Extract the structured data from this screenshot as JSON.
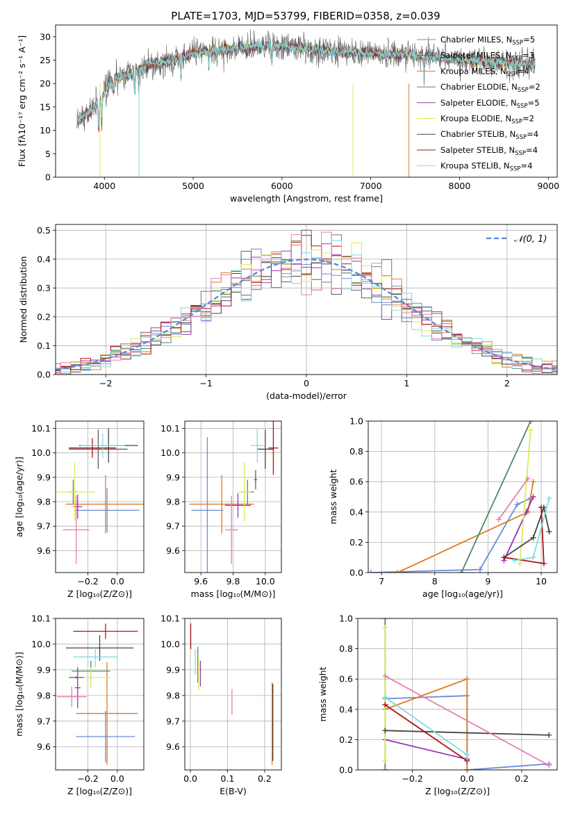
{
  "title": "PLATE=1703, MJD=53799, FIBERID=0358, z=0.039",
  "colors": [
    "#6a8ad6",
    "#5e5e5e",
    "#e07a1f",
    "#4f8a5e",
    "#9a32b4",
    "#d9ec4f",
    "#444444",
    "#b01212",
    "#7fdce0",
    "#e87db0"
  ],
  "chart_data": [
    {
      "id": "spectrum",
      "type": "line",
      "title": "PLATE=1703, MJD=53799, FIBERID=0358, z=0.039",
      "xlabel": "wavelength [Angstrom, rest frame]",
      "ylabel": "Flux [fλ10⁻¹⁷ erg cm⁻² s⁻¹ A⁻¹]",
      "xlim": [
        3450,
        9100
      ],
      "ylim": [
        0,
        32.5
      ],
      "xticks": [
        4000,
        5000,
        6000,
        7000,
        8000,
        9000
      ],
      "yticks": [
        0,
        5,
        10,
        15,
        20,
        25,
        30
      ],
      "x_range": [
        3690,
        8850
      ],
      "continuum": [
        [
          3690,
          12
        ],
        [
          3850,
          14
        ],
        [
          3960,
          17
        ],
        [
          4100,
          21
        ],
        [
          4300,
          22
        ],
        [
          4500,
          24
        ],
        [
          4800,
          25
        ],
        [
          5000,
          26.5
        ],
        [
          5200,
          27
        ],
        [
          5500,
          27.5
        ],
        [
          5800,
          28
        ],
        [
          6000,
          28
        ],
        [
          6200,
          27.5
        ],
        [
          6500,
          27
        ],
        [
          7000,
          26.5
        ],
        [
          7500,
          26
        ],
        [
          8000,
          25
        ],
        [
          8500,
          24.5
        ],
        [
          8850,
          24
        ]
      ],
      "grid": false,
      "legend_position": "upper right",
      "legend": [
        "Chabrier MILES, N_SSP=5",
        "Salpeter MILES, N_SSP=3",
        "Kroupa MILES, N_SSP=4",
        "Chabrier ELODIE, N_SSP=2",
        "Salpeter ELODIE, N_SSP=5",
        "Kroupa ELODIE, N_SSP=2",
        "Chabrier STELIB, N_SSP=4",
        "Salpeter STELIB, N_SSP=4",
        "Kroupa STELIB, N_SSP=4"
      ],
      "legend_text": [
        {
          "main": "Chabrier MILES, N",
          "sub": "SSP",
          "tail": "=5"
        },
        {
          "main": "Salpeter MILES, N",
          "sub": "SSP",
          "tail": "=3"
        },
        {
          "main": "Kroupa MILES, N",
          "sub": "SSP",
          "tail": "=4"
        },
        {
          "main": "Chabrier ELODIE, N",
          "sub": "SSP",
          "tail": "=2"
        },
        {
          "main": "Salpeter ELODIE, N",
          "sub": "SSP",
          "tail": "=5"
        },
        {
          "main": "Kroupa ELODIE, N",
          "sub": "SSP",
          "tail": "=2"
        },
        {
          "main": "Chabrier STELIB, N",
          "sub": "SSP",
          "tail": "=4"
        },
        {
          "main": "Salpeter STELIB, N",
          "sub": "SSP",
          "tail": "=4"
        },
        {
          "main": "Kroupa STELIB, N",
          "sub": "SSP",
          "tail": "=4"
        }
      ],
      "legend_colors": [
        "#6a8ad6",
        "#5e5e5e",
        "#e07a1f",
        "#4f8a5e",
        "#9a32b4",
        "#d9ec4f",
        "#444444",
        "#b01212",
        "#7fdce0"
      ]
    },
    {
      "id": "residuals",
      "type": "step",
      "xlabel": "(data-model)/error",
      "ylabel": "Normed distribution",
      "xlim": [
        -2.5,
        2.5
      ],
      "ylim": [
        0,
        0.52
      ],
      "xticks": [
        -2,
        -1,
        0,
        1,
        2
      ],
      "yticks": [
        0.0,
        0.1,
        0.2,
        0.3,
        0.4,
        0.5
      ],
      "grid": true,
      "bin_width": 0.1,
      "reference_curve": {
        "name": "𝒩(0, 1)",
        "mean": 0,
        "sigma": 1,
        "color": "#5588dd"
      },
      "legend_position": "upper right"
    },
    {
      "id": "age-vs-Z",
      "type": "errorbar",
      "xlabel": "Z [log₁₀(Z/Z⊙)]",
      "ylabel": "age  [log₁₀(age/yr)]",
      "xlim": [
        -0.42,
        0.18
      ],
      "ylim": [
        9.51,
        10.13
      ],
      "xticks": [
        -0.2,
        0.0
      ],
      "yticks": [
        9.6,
        9.7,
        9.8,
        9.9,
        10.0,
        10.1
      ],
      "grid": true,
      "points": [
        {
          "x": -0.07,
          "y": 9.765,
          "xerr": 0.22,
          "yerr": 0.09,
          "color": "#6a8ad6"
        },
        {
          "x": -0.06,
          "y": 10.03,
          "xerr": 0.2,
          "yerr": 0.07,
          "color": "#444444"
        },
        {
          "x": -0.08,
          "y": 9.79,
          "xerr": 0.27,
          "yerr": 0.12,
          "color": "#e07a1f"
        },
        {
          "x": -0.3,
          "y": 9.84,
          "xerr": 0.03,
          "yerr": 0.05,
          "color": "#4f8a5e"
        },
        {
          "x": -0.27,
          "y": 9.78,
          "xerr": 0.03,
          "yerr": 0.05,
          "color": "#9a32b4"
        },
        {
          "x": -0.29,
          "y": 9.84,
          "xerr": 0.14,
          "yerr": 0.12,
          "color": "#d9ec4f"
        },
        {
          "x": -0.13,
          "y": 10.015,
          "xerr": 0.2,
          "yerr": 0.08,
          "color": "#5e5e5e"
        },
        {
          "x": -0.17,
          "y": 10.02,
          "xerr": 0.16,
          "yerr": 0.04,
          "color": "#b01212"
        },
        {
          "x": -0.1,
          "y": 10.03,
          "xerr": 0.15,
          "yerr": 0.05,
          "color": "#7fdce0"
        },
        {
          "x": -0.28,
          "y": 9.685,
          "xerr": 0.09,
          "yerr": 0.14,
          "color": "#e87db0"
        }
      ]
    },
    {
      "id": "age-vs-mass",
      "type": "errorbar",
      "xlabel": "mass [log₁₀(M/M⊙)]",
      "ylabel": "",
      "xlim": [
        9.5,
        10.1
      ],
      "ylim": [
        9.51,
        10.13
      ],
      "xticks": [
        9.6,
        9.8,
        10.0
      ],
      "yticks": [
        9.6,
        9.7,
        9.8,
        9.9,
        10.0,
        10.1
      ],
      "grid": true,
      "points": [
        {
          "x": 9.64,
          "y": 9.765,
          "xerr": 0.1,
          "yerr": 0.3,
          "color": "#6a8ad6"
        },
        {
          "x": 10.0,
          "y": 10.015,
          "xerr": 0.05,
          "yerr": 0.08,
          "color": "#444444"
        },
        {
          "x": 9.73,
          "y": 9.79,
          "xerr": 0.2,
          "yerr": 0.12,
          "color": "#e07a1f"
        },
        {
          "x": 9.89,
          "y": 9.84,
          "xerr": 0.04,
          "yerr": 0.05,
          "color": "#4f8a5e"
        },
        {
          "x": 9.83,
          "y": 9.785,
          "xerr": 0.08,
          "yerr": 0.05,
          "color": "#9a32b4"
        },
        {
          "x": 9.87,
          "y": 9.84,
          "xerr": 0.04,
          "yerr": 0.12,
          "color": "#d9ec4f"
        },
        {
          "x": 9.94,
          "y": 9.89,
          "xerr": 0.01,
          "yerr": 0.04,
          "color": "#5e5e5e"
        },
        {
          "x": 10.05,
          "y": 10.02,
          "xerr": 0.03,
          "yerr": 0.11,
          "color": "#b01212"
        },
        {
          "x": 9.95,
          "y": 10.03,
          "xerr": 0.04,
          "yerr": 0.07,
          "color": "#7fdce0"
        },
        {
          "x": 9.79,
          "y": 9.685,
          "xerr": 0.04,
          "yerr": 0.14,
          "color": "#e87db0"
        }
      ]
    },
    {
      "id": "mass-weight-vs-age",
      "type": "line",
      "xlabel": "age  [log₁₀(age/yr)]",
      "ylabel": "mass weight",
      "xlim": [
        6.75,
        10.3
      ],
      "ylim": [
        0,
        1.0
      ],
      "xticks": [
        7,
        8,
        9,
        10
      ],
      "yticks": [
        0.0,
        0.2,
        0.4,
        0.6,
        0.8,
        1.0
      ],
      "grid": true,
      "series": [
        {
          "color": "#6a8ad6",
          "x": [
            6.8,
            8.85,
            9.55,
            9.8
          ],
          "y": [
            0.0,
            0.02,
            0.45,
            0.49
          ]
        },
        {
          "color": "#e07a1f",
          "x": [
            7.3,
            9.75,
            9.85
          ],
          "y": [
            0.0,
            0.4,
            0.6
          ]
        },
        {
          "color": "#4f8a5e",
          "x": [
            8.5,
            9.8
          ],
          "y": [
            0.0,
            1.0
          ]
        },
        {
          "color": "#9a32b4",
          "x": [
            9.3,
            9.72,
            9.85
          ],
          "y": [
            0.08,
            0.4,
            0.5
          ]
        },
        {
          "color": "#d9ec4f",
          "x": [
            9.6,
            9.8
          ],
          "y": [
            0.06,
            0.94
          ]
        },
        {
          "color": "#444444",
          "x": [
            9.3,
            9.85,
            10.05,
            10.15
          ],
          "y": [
            0.1,
            0.23,
            0.43,
            0.27
          ]
        },
        {
          "color": "#b01212",
          "x": [
            9.3,
            10.05,
            10.0
          ],
          "y": [
            0.1,
            0.06,
            0.43
          ]
        },
        {
          "color": "#7fdce0",
          "x": [
            9.5,
            9.85,
            10.15
          ],
          "y": [
            0.08,
            0.1,
            0.49
          ]
        },
        {
          "color": "#e87db0",
          "x": [
            9.2,
            9.75
          ],
          "y": [
            0.35,
            0.62
          ]
        }
      ]
    },
    {
      "id": "mass-vs-Z",
      "type": "errorbar",
      "xlabel": "Z [log₁₀(Z/Z⊙)]",
      "ylabel": "mass [log₁₀(M/M⊙)]",
      "xlim": [
        -0.42,
        0.18
      ],
      "ylim": [
        9.51,
        10.1
      ],
      "xticks": [
        -0.2,
        0.0
      ],
      "yticks": [
        9.6,
        9.7,
        9.8,
        9.9,
        10.0,
        10.1
      ],
      "grid": true,
      "points": [
        {
          "x": -0.08,
          "y": 9.64,
          "xerr": 0.2,
          "yerr": 0.1,
          "color": "#6a8ad6"
        },
        {
          "x": -0.07,
          "y": 9.73,
          "xerr": 0.21,
          "yerr": 0.2,
          "color": "#e07a1f"
        },
        {
          "x": -0.18,
          "y": 9.895,
          "xerr": 0.13,
          "yerr": 0.04,
          "color": "#4f8a5e"
        },
        {
          "x": -0.27,
          "y": 9.83,
          "xerr": 0.02,
          "yerr": 0.08,
          "color": "#9a32b4"
        },
        {
          "x": -0.18,
          "y": 9.87,
          "xerr": 0.13,
          "yerr": 0.04,
          "color": "#d9ec4f"
        },
        {
          "x": -0.12,
          "y": 9.985,
          "xerr": 0.23,
          "yerr": 0.05,
          "color": "#444444"
        },
        {
          "x": -0.08,
          "y": 10.05,
          "xerr": 0.22,
          "yerr": 0.03,
          "color": "#b01212"
        },
        {
          "x": -0.15,
          "y": 9.95,
          "xerr": 0.15,
          "yerr": 0.04,
          "color": "#7fdce0"
        },
        {
          "x": -0.31,
          "y": 9.795,
          "xerr": 0.1,
          "yerr": 0.04,
          "color": "#e87db0"
        },
        {
          "x": -0.28,
          "y": 9.87,
          "xerr": 0.05,
          "yerr": 0.005,
          "color": "#5e5e5e"
        }
      ]
    },
    {
      "id": "mass-vs-EBV",
      "type": "errorbar",
      "xlabel": "E(B-V)",
      "ylabel": "",
      "xlim": [
        -0.015,
        0.245
      ],
      "ylim": [
        9.51,
        10.1
      ],
      "xticks": [
        0.0,
        0.1,
        0.2
      ],
      "yticks": [
        9.6,
        9.7,
        9.8,
        9.9,
        10.0,
        10.1
      ],
      "grid": true,
      "points": [
        {
          "x": 0.001,
          "y": 10.03,
          "xerr": 0,
          "yerr": 0.05,
          "color": "#b01212"
        },
        {
          "x": 0.013,
          "y": 9.93,
          "xerr": 0,
          "yerr": 0.05,
          "color": "#7fdce0"
        },
        {
          "x": 0.02,
          "y": 9.92,
          "xerr": 0,
          "yerr": 0.07,
          "color": "#4f8a5e"
        },
        {
          "x": 0.022,
          "y": 9.88,
          "xerr": 0,
          "yerr": 0.06,
          "color": "#d9ec4f"
        },
        {
          "x": 0.027,
          "y": 9.885,
          "xerr": 0,
          "yerr": 0.05,
          "color": "#9a32b4"
        },
        {
          "x": 0.112,
          "y": 9.775,
          "xerr": 0,
          "yerr": 0.05,
          "color": "#e87db0"
        },
        {
          "x": 0.22,
          "y": 9.69,
          "xerr": 0,
          "yerr": 0.16,
          "color": "#e07a1f"
        },
        {
          "x": 0.222,
          "y": 9.695,
          "xerr": 0,
          "yerr": 0.15,
          "color": "#444444"
        }
      ]
    },
    {
      "id": "mass-weight-vs-Z",
      "type": "line",
      "xlabel": "Z [log₁₀(Z/Z⊙)]",
      "ylabel": "mass weight",
      "xlim": [
        -0.4,
        0.33
      ],
      "ylim": [
        0,
        1.0
      ],
      "xticks": [
        -0.2,
        0.0,
        0.2
      ],
      "yticks": [
        0.0,
        0.2,
        0.4,
        0.6,
        0.8,
        1.0
      ],
      "grid": true,
      "series": [
        {
          "color": "#6a8ad6",
          "x": [
            -0.3,
            0.0,
            0.0,
            0.3
          ],
          "y": [
            0.47,
            0.49,
            0.0,
            0.04
          ]
        },
        {
          "color": "#e07a1f",
          "x": [
            -0.3,
            0.0,
            0.0
          ],
          "y": [
            0.4,
            0.6,
            0.0
          ]
        },
        {
          "color": "#4f8a5e",
          "x": [
            -0.3,
            -0.3
          ],
          "y": [
            0.0,
            1.0
          ]
        },
        {
          "color": "#9a32b4",
          "x": [
            -0.3,
            0.0
          ],
          "y": [
            0.2,
            0.07
          ]
        },
        {
          "color": "#d9ec4f",
          "x": [
            -0.3,
            -0.3
          ],
          "y": [
            0.06,
            0.94
          ]
        },
        {
          "color": "#444444",
          "x": [
            -0.3,
            0.3
          ],
          "y": [
            0.26,
            0.23
          ]
        },
        {
          "color": "#b01212",
          "x": [
            -0.3,
            0.0
          ],
          "y": [
            0.43,
            0.06
          ]
        },
        {
          "color": "#7fdce0",
          "x": [
            -0.3,
            0.0,
            0.0
          ],
          "y": [
            0.48,
            0.1,
            0.08
          ]
        },
        {
          "color": "#e87db0",
          "x": [
            -0.3,
            0.3
          ],
          "y": [
            0.62,
            0.03
          ]
        }
      ]
    }
  ]
}
